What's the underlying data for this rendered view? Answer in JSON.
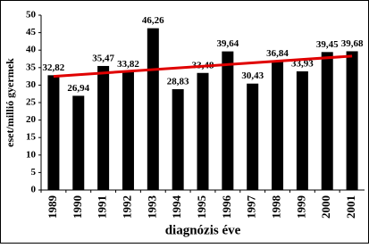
{
  "chart_data": {
    "type": "bar",
    "x_label": "diagnózis éve",
    "y_label": "eset/millió gyermek",
    "categories": [
      "1989",
      "1990",
      "1991",
      "1992",
      "1993",
      "1994",
      "1995",
      "1996",
      "1997",
      "1998",
      "1999",
      "2000",
      "2001"
    ],
    "values": [
      32.82,
      26.94,
      35.47,
      33.82,
      46.26,
      28.83,
      33.48,
      39.64,
      30.43,
      36.84,
      33.93,
      39.45,
      39.68
    ],
    "value_labels": [
      "32,82",
      "26,94",
      "35,47",
      "33,82",
      "46,26",
      "28,83",
      "33,48",
      "39,64",
      "30,43",
      "36,84",
      "33,93",
      "39,45",
      "39,68"
    ],
    "color": "#000000",
    "trendline": {
      "values": [
        32.5,
        38.3
      ],
      "color": "#e00000"
    },
    "ylim": [
      0,
      50
    ],
    "yticks": [
      0,
      5,
      10,
      15,
      20,
      25,
      30,
      35,
      40,
      45,
      50
    ],
    "grid": false
  }
}
